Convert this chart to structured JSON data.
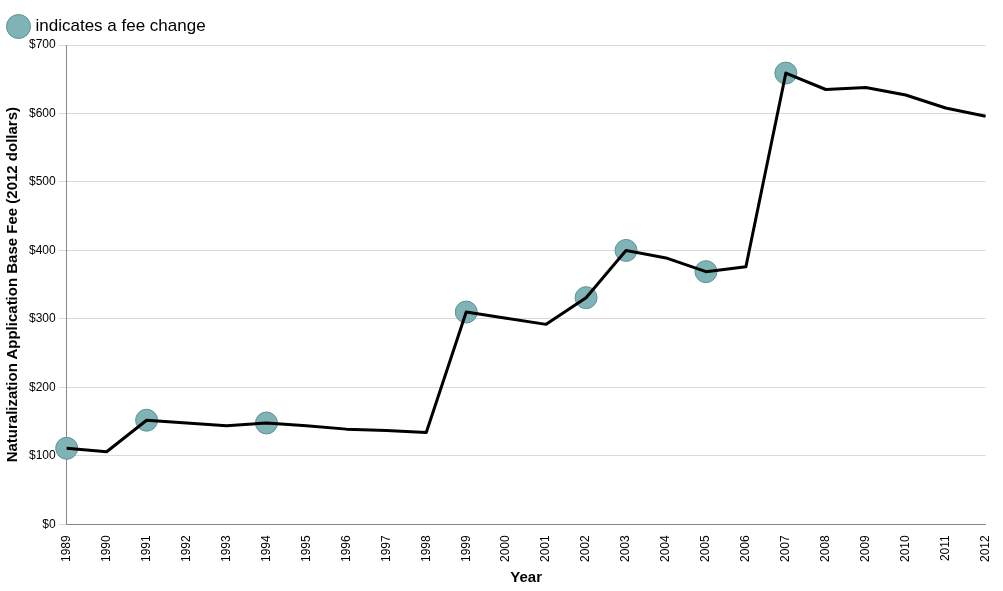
{
  "chart_data": {
    "type": "line",
    "xlabel": "Year",
    "ylabel": "Naturalization Application Base Fee (2012 dollars)",
    "categories": [
      "1989",
      "1990",
      "1991",
      "1992",
      "1993",
      "1994",
      "1995",
      "1996",
      "1997",
      "1998",
      "1999",
      "2000",
      "2001",
      "2002",
      "2003",
      "2004",
      "2005",
      "2006",
      "2007",
      "2008",
      "2009",
      "2010",
      "2011",
      "2012"
    ],
    "series": [
      {
        "color": "#000000",
        "marker": "none",
        "values": [
          111,
          106,
          152,
          148,
          144,
          148,
          144,
          139,
          137,
          134,
          310,
          301,
          292,
          331,
          400,
          389,
          369,
          376,
          659,
          635,
          638,
          627,
          608,
          596
        ]
      },
      {
        "type": "scatter",
        "name": "indicates a fee change",
        "color": "#7fb3b5",
        "marker": "circle",
        "values": [
          111,
          null,
          152,
          null,
          null,
          148,
          null,
          null,
          null,
          null,
          310,
          null,
          null,
          331,
          400,
          null,
          369,
          null,
          659,
          null,
          null,
          null,
          null,
          null
        ]
      }
    ],
    "ylim": [
      0,
      700
    ],
    "yticks": [
      {
        "value": 0,
        "label": "$0"
      },
      {
        "value": 100,
        "label": "$100"
      },
      {
        "value": 200,
        "label": "$200"
      },
      {
        "value": 300,
        "label": "$300"
      },
      {
        "value": 400,
        "label": "$400"
      },
      {
        "value": 500,
        "label": "$500"
      },
      {
        "value": 600,
        "label": "$600"
      },
      {
        "value": 700,
        "label": "$700"
      }
    ],
    "grid": "y",
    "legend": "top left"
  }
}
